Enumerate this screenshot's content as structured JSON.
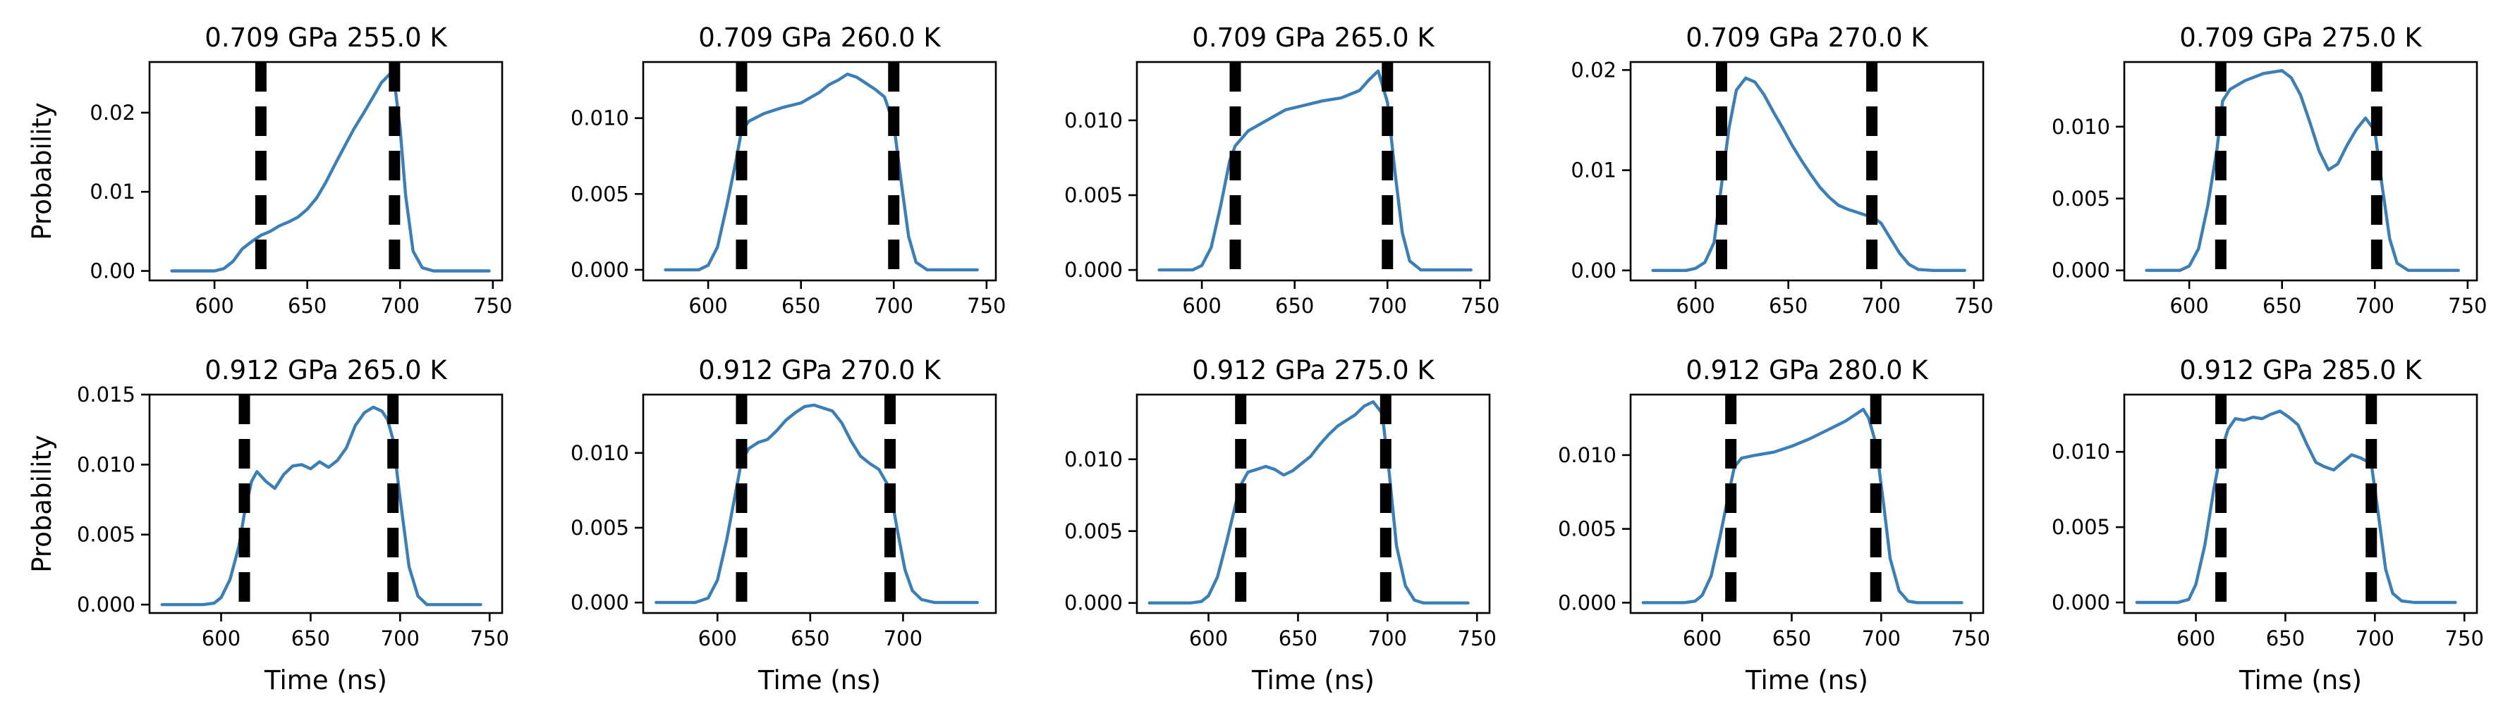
{
  "colors": {
    "series": "#3a7fb8",
    "boundary": "#000000"
  },
  "chart_data": [
    {
      "type": "line",
      "title": "0.709 GPa   255.0 K",
      "xlabel": "",
      "ylabel": "Probability",
      "xlim": [
        565,
        755
      ],
      "ylim": [
        -0.0012,
        0.0264
      ],
      "xticks": [
        600,
        650,
        700,
        750
      ],
      "yticks": [
        0,
        0.01,
        0.02
      ],
      "ytick_labels": [
        "0.00",
        "0.01",
        "0.02"
      ],
      "vlines": [
        625,
        697
      ],
      "x": [
        577,
        590,
        600,
        605,
        610,
        615,
        620,
        625,
        630,
        635,
        640,
        645,
        650,
        655,
        660,
        665,
        670,
        675,
        680,
        685,
        690,
        695,
        697,
        700,
        703,
        707,
        712,
        718,
        725,
        735,
        748
      ],
      "y": [
        0,
        0,
        0,
        0.0003,
        0.0012,
        0.0028,
        0.0037,
        0.0045,
        0.005,
        0.0057,
        0.0062,
        0.0068,
        0.0078,
        0.0092,
        0.0112,
        0.0135,
        0.0157,
        0.0179,
        0.0198,
        0.0218,
        0.0238,
        0.025,
        0.0238,
        0.018,
        0.0095,
        0.0025,
        0.0004,
        0,
        0,
        0,
        0
      ]
    },
    {
      "type": "line",
      "title": "0.709 GPa   260.0 K",
      "xlabel": "",
      "ylabel": "",
      "xlim": [
        565,
        755
      ],
      "ylim": [
        -0.0007,
        0.0137
      ],
      "xticks": [
        600,
        650,
        700,
        750
      ],
      "yticks": [
        0,
        0.005,
        0.01
      ],
      "ytick_labels": [
        "0.000",
        "0.005",
        "0.010"
      ],
      "vlines": [
        618,
        700
      ],
      "x": [
        577,
        595,
        600,
        605,
        610,
        615,
        618,
        622,
        630,
        640,
        650,
        660,
        665,
        670,
        675,
        680,
        685,
        690,
        695,
        700,
        704,
        708,
        712,
        718,
        725,
        735,
        745
      ],
      "y": [
        0,
        0,
        0.0003,
        0.0015,
        0.0042,
        0.0072,
        0.0092,
        0.0098,
        0.0103,
        0.0107,
        0.011,
        0.0117,
        0.0122,
        0.0125,
        0.0129,
        0.0127,
        0.0123,
        0.0119,
        0.0114,
        0.0096,
        0.0058,
        0.0022,
        0.0005,
        0,
        0,
        0,
        0
      ]
    },
    {
      "type": "line",
      "title": "0.709 GPa   265.0 K",
      "xlabel": "",
      "ylabel": "",
      "xlim": [
        565,
        755
      ],
      "ylim": [
        -0.0007,
        0.0139
      ],
      "xticks": [
        600,
        650,
        700,
        750
      ],
      "yticks": [
        0,
        0.005,
        0.01
      ],
      "ytick_labels": [
        "0.000",
        "0.005",
        "0.010"
      ],
      "vlines": [
        618,
        700
      ],
      "x": [
        577,
        595,
        600,
        605,
        610,
        615,
        618,
        625,
        635,
        645,
        655,
        665,
        675,
        685,
        690,
        695,
        700,
        704,
        708,
        712,
        718,
        725,
        735,
        745
      ],
      "y": [
        0,
        0,
        0.0003,
        0.0015,
        0.0042,
        0.0073,
        0.0083,
        0.0093,
        0.01,
        0.0107,
        0.011,
        0.0113,
        0.0115,
        0.012,
        0.0127,
        0.0133,
        0.0112,
        0.0066,
        0.0025,
        0.0006,
        0,
        0,
        0,
        0
      ]
    },
    {
      "type": "line",
      "title": "0.709 GPa   270.0 K",
      "xlabel": "",
      "ylabel": "",
      "xlim": [
        565,
        755
      ],
      "ylim": [
        -0.001,
        0.0208
      ],
      "xticks": [
        600,
        650,
        700,
        750
      ],
      "yticks": [
        0,
        0.01,
        0.02
      ],
      "ytick_labels": [
        "0.00",
        "0.01",
        "0.02"
      ],
      "vlines": [
        614,
        695
      ],
      "x": [
        577,
        595,
        600,
        605,
        610,
        614,
        618,
        622,
        627,
        632,
        637,
        642,
        647,
        652,
        657,
        662,
        667,
        672,
        677,
        682,
        687,
        692,
        695,
        700,
        705,
        710,
        715,
        720,
        728,
        738,
        745
      ],
      "y": [
        0,
        0,
        0.0002,
        0.0008,
        0.0028,
        0.0085,
        0.0142,
        0.018,
        0.0192,
        0.0188,
        0.0175,
        0.0158,
        0.0142,
        0.0125,
        0.011,
        0.0096,
        0.0083,
        0.0073,
        0.0065,
        0.0061,
        0.0058,
        0.0055,
        0.0054,
        0.0047,
        0.0032,
        0.0017,
        0.0006,
        0.0001,
        0,
        0,
        0
      ]
    },
    {
      "type": "line",
      "title": "0.709 GPa   275.0 K",
      "xlabel": "",
      "ylabel": "",
      "xlim": [
        565,
        755
      ],
      "ylim": [
        -0.0007,
        0.0145
      ],
      "xticks": [
        600,
        650,
        700,
        750
      ],
      "yticks": [
        0,
        0.005,
        0.01
      ],
      "ytick_labels": [
        "0.000",
        "0.005",
        "0.010"
      ],
      "vlines": [
        617,
        701
      ],
      "x": [
        577,
        595,
        600,
        605,
        610,
        615,
        618,
        622,
        630,
        640,
        650,
        655,
        660,
        665,
        670,
        675,
        680,
        685,
        690,
        695,
        700,
        704,
        708,
        712,
        718,
        725,
        735,
        745
      ],
      "y": [
        0,
        0,
        0.0003,
        0.0015,
        0.0045,
        0.0085,
        0.0118,
        0.0126,
        0.0132,
        0.0137,
        0.0139,
        0.0134,
        0.0122,
        0.0103,
        0.0083,
        0.007,
        0.0074,
        0.0087,
        0.0098,
        0.0106,
        0.0097,
        0.0058,
        0.0022,
        0.0005,
        0,
        0,
        0,
        0
      ]
    },
    {
      "type": "line",
      "title": "0.912 GPa   265.0 K",
      "xlabel": "Time (ns)",
      "ylabel": "Probability",
      "xlim": [
        560,
        757
      ],
      "ylim": [
        -0.0006,
        0.015
      ],
      "xticks": [
        600,
        650,
        700,
        750
      ],
      "yticks": [
        0,
        0.005,
        0.01,
        0.015
      ],
      "ytick_labels": [
        "0.000",
        "0.005",
        "0.010",
        "0.015"
      ],
      "vlines": [
        613,
        696
      ],
      "x": [
        567,
        590,
        596,
        600,
        605,
        610,
        613,
        617,
        620,
        625,
        630,
        635,
        640,
        645,
        650,
        655,
        660,
        665,
        670,
        675,
        680,
        685,
        690,
        693,
        696,
        700,
        705,
        710,
        715,
        720,
        730,
        745
      ],
      "y": [
        0,
        0,
        0.0001,
        0.0005,
        0.0018,
        0.0042,
        0.0065,
        0.0088,
        0.0095,
        0.0088,
        0.0083,
        0.0093,
        0.0099,
        0.01,
        0.0097,
        0.0102,
        0.0098,
        0.0103,
        0.0112,
        0.0128,
        0.0137,
        0.0141,
        0.0138,
        0.0132,
        0.0118,
        0.0076,
        0.0027,
        0.0006,
        0,
        0,
        0,
        0
      ]
    },
    {
      "type": "line",
      "title": "0.912 GPa   270.0 K",
      "xlabel": "Time (ns)",
      "ylabel": "",
      "xlim": [
        560,
        750
      ],
      "ylim": [
        -0.0007,
        0.0139
      ],
      "xticks": [
        600,
        650,
        700
      ],
      "yticks": [
        0,
        0.005,
        0.01
      ],
      "ytick_labels": [
        "0.000",
        "0.005",
        "0.010"
      ],
      "vlines": [
        613,
        693
      ],
      "x": [
        567,
        588,
        595,
        600,
        605,
        610,
        613,
        617,
        622,
        627,
        632,
        637,
        642,
        647,
        652,
        657,
        662,
        667,
        672,
        677,
        682,
        687,
        693,
        697,
        701,
        705,
        710,
        717,
        727,
        740
      ],
      "y": [
        0,
        0,
        0.0003,
        0.0015,
        0.0042,
        0.0075,
        0.0095,
        0.0103,
        0.0107,
        0.0109,
        0.0115,
        0.0122,
        0.0127,
        0.0131,
        0.0132,
        0.013,
        0.0128,
        0.012,
        0.0108,
        0.0098,
        0.0093,
        0.0089,
        0.0076,
        0.0048,
        0.0022,
        0.0008,
        0.0002,
        0,
        0,
        0
      ]
    },
    {
      "type": "line",
      "title": "0.912 GPa   275.0 K",
      "xlabel": "Time (ns)",
      "ylabel": "",
      "xlim": [
        560,
        757
      ],
      "ylim": [
        -0.0007,
        0.0145
      ],
      "xticks": [
        600,
        650,
        700,
        750
      ],
      "yticks": [
        0,
        0.005,
        0.01
      ],
      "ytick_labels": [
        "0.000",
        "0.005",
        "0.010"
      ],
      "vlines": [
        618,
        699
      ],
      "x": [
        567,
        590,
        596,
        600,
        605,
        610,
        615,
        618,
        622,
        627,
        632,
        637,
        642,
        647,
        652,
        657,
        662,
        667,
        672,
        677,
        682,
        687,
        692,
        697,
        701,
        705,
        710,
        715,
        720,
        730,
        745
      ],
      "y": [
        0,
        0,
        0.0001,
        0.0005,
        0.0018,
        0.0042,
        0.0068,
        0.0082,
        0.0091,
        0.0093,
        0.0095,
        0.0093,
        0.0089,
        0.0092,
        0.0097,
        0.0102,
        0.011,
        0.0117,
        0.0123,
        0.0127,
        0.0131,
        0.0137,
        0.014,
        0.0132,
        0.009,
        0.004,
        0.0012,
        0.0002,
        0,
        0,
        0
      ]
    },
    {
      "type": "line",
      "title": "0.912 GPa   280.0 K",
      "xlabel": "Time (ns)",
      "ylabel": "",
      "xlim": [
        560,
        757
      ],
      "ylim": [
        -0.0007,
        0.0141
      ],
      "xticks": [
        600,
        650,
        700,
        750
      ],
      "yticks": [
        0,
        0.005,
        0.01
      ],
      "ytick_labels": [
        "0.000",
        "0.005",
        "0.010"
      ],
      "vlines": [
        616,
        697
      ],
      "x": [
        567,
        590,
        596,
        600,
        605,
        610,
        615,
        618,
        622,
        630,
        640,
        650,
        660,
        670,
        675,
        680,
        685,
        690,
        693,
        697,
        701,
        705,
        710,
        715,
        720,
        730,
        745
      ],
      "y": [
        0,
        0,
        0.0001,
        0.0005,
        0.0018,
        0.0045,
        0.0075,
        0.0092,
        0.0098,
        0.01,
        0.0102,
        0.0106,
        0.0111,
        0.0117,
        0.012,
        0.0123,
        0.0127,
        0.0131,
        0.0125,
        0.0108,
        0.007,
        0.003,
        0.0008,
        0.0001,
        0,
        0,
        0
      ]
    },
    {
      "type": "line",
      "title": "0.912 GPa   285.0 K",
      "xlabel": "Time (ns)",
      "ylabel": "",
      "xlim": [
        560,
        757
      ],
      "ylim": [
        -0.0007,
        0.0138
      ],
      "xticks": [
        600,
        650,
        700,
        750
      ],
      "yticks": [
        0,
        0.005,
        0.01
      ],
      "ytick_labels": [
        "0.000",
        "0.005",
        "0.010"
      ],
      "vlines": [
        614,
        698
      ],
      "x": [
        567,
        590,
        596,
        600,
        605,
        610,
        614,
        618,
        622,
        627,
        632,
        637,
        642,
        647,
        652,
        657,
        662,
        667,
        672,
        677,
        682,
        687,
        692,
        698,
        702,
        706,
        710,
        715,
        722,
        732,
        745
      ],
      "y": [
        0,
        0,
        0.0002,
        0.0012,
        0.0038,
        0.0075,
        0.01,
        0.0115,
        0.0122,
        0.0121,
        0.0123,
        0.0122,
        0.0125,
        0.0127,
        0.0123,
        0.0118,
        0.0105,
        0.0093,
        0.009,
        0.0088,
        0.0093,
        0.0098,
        0.0096,
        0.0092,
        0.0058,
        0.0022,
        0.0006,
        0.0001,
        0,
        0,
        0
      ]
    }
  ]
}
